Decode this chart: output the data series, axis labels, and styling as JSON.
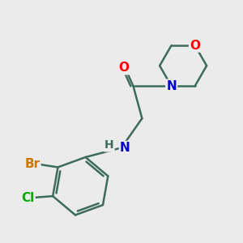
{
  "background_color": "#ebebeb",
  "bond_color": "#3d6b5e",
  "bond_width": 1.8,
  "atom_colors": {
    "O": "#ff0000",
    "N": "#0000cc",
    "Br": "#cc7700",
    "Cl": "#00aa00",
    "H": "#3d6b5e",
    "C": "#3d6b5e"
  },
  "font_size": 11,
  "fig_size": [
    3.0,
    3.0
  ],
  "dpi": 100
}
